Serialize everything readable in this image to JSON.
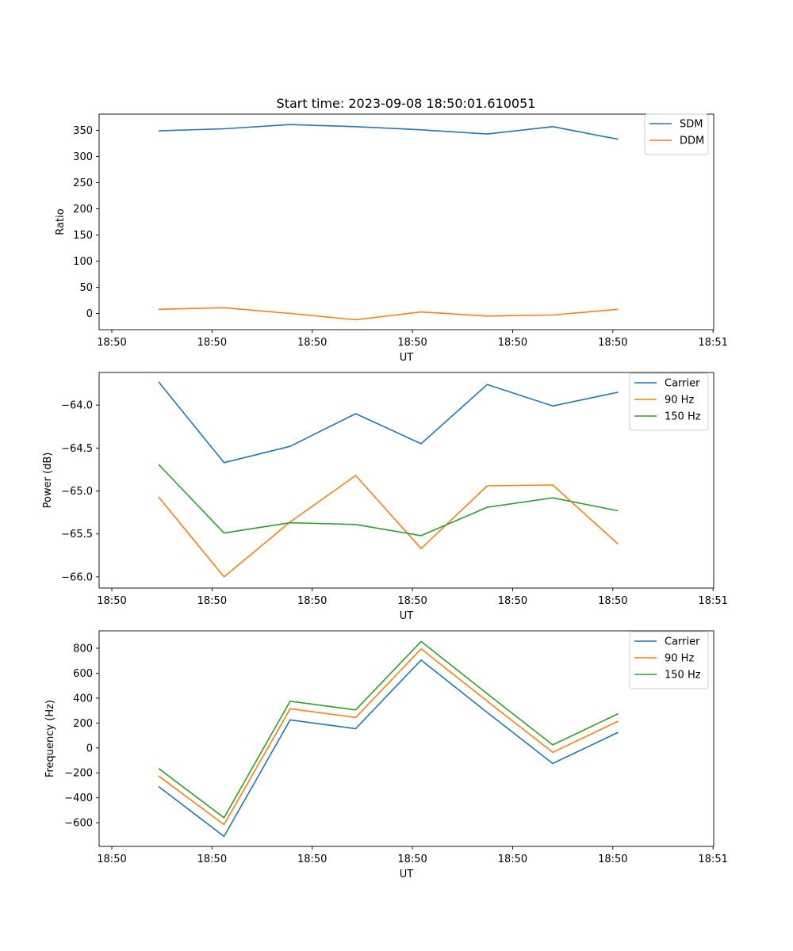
{
  "chart_data": [
    {
      "type": "line",
      "title": "Start time: 2023-09-08 18:50:01.610051",
      "xlabel": "UT",
      "ylabel": "Ratio",
      "xlim": [
        -0.19,
        9.01
      ],
      "ylim": [
        -31,
        381
      ],
      "x_ticks": [
        0,
        3,
        6,
        9
      ],
      "x_tick_values": [
        -0.0,
        1.5,
        3.0,
        4.5,
        6.0,
        7.5,
        9.0
      ],
      "x_tick_labels": [
        "18:50",
        "18:50",
        "18:50",
        "18:50",
        "18:50",
        "18:50",
        "18:51"
      ],
      "y_ticks": [
        0,
        50,
        100,
        150,
        200,
        250,
        300,
        350
      ],
      "y_tick_labels": [
        "0",
        "50",
        "100",
        "150",
        "200",
        "250",
        "300",
        "350"
      ],
      "legend_position": "top-right",
      "x": [
        0.7,
        1.68,
        2.67,
        3.65,
        4.63,
        5.62,
        6.6,
        7.58
      ],
      "series": [
        {
          "name": "SDM",
          "color": "#1f77b4",
          "values": [
            349,
            353,
            361,
            357,
            351,
            343,
            357,
            333
          ]
        },
        {
          "name": "DDM",
          "color": "#ff7f0e",
          "values": [
            8,
            11,
            0,
            -12,
            3,
            -5,
            -3,
            8
          ]
        }
      ]
    },
    {
      "type": "line",
      "title": "",
      "xlabel": "UT",
      "ylabel": "Power (dB)",
      "xlim": [
        -0.19,
        9.01
      ],
      "ylim": [
        -66.13,
        -63.62
      ],
      "x_tick_values": [
        -0.0,
        1.5,
        3.0,
        4.5,
        6.0,
        7.5,
        9.0
      ],
      "x_tick_labels": [
        "18:50",
        "18:50",
        "18:50",
        "18:50",
        "18:50",
        "18:50",
        "18:51"
      ],
      "y_ticks": [
        -66.0,
        -65.5,
        -65.0,
        -64.5,
        -64.0
      ],
      "y_tick_labels": [
        "−66.0",
        "−65.5",
        "−65.0",
        "−64.5",
        "−64.0"
      ],
      "legend_position": "top-right",
      "x": [
        0.7,
        1.68,
        2.67,
        3.65,
        4.63,
        5.62,
        6.6,
        7.58
      ],
      "series": [
        {
          "name": "Carrier",
          "color": "#1f77b4",
          "values": [
            -63.73,
            -64.67,
            -64.48,
            -64.1,
            -64.45,
            -63.76,
            -64.01,
            -63.85
          ]
        },
        {
          "name": "90 Hz",
          "color": "#ff7f0e",
          "values": [
            -65.07,
            -66.0,
            -65.36,
            -64.82,
            -65.67,
            -64.94,
            -64.93,
            -65.62
          ]
        },
        {
          "name": "150 Hz",
          "color": "#2ca02c",
          "values": [
            -64.69,
            -65.49,
            -65.37,
            -65.39,
            -65.52,
            -65.19,
            -65.08,
            -65.23
          ]
        }
      ]
    },
    {
      "type": "line",
      "title": "",
      "xlabel": "UT",
      "ylabel": "Frequency (Hz)",
      "xlim": [
        -0.19,
        9.01
      ],
      "ylim": [
        -790,
        940
      ],
      "x_tick_values": [
        -0.0,
        1.5,
        3.0,
        4.5,
        6.0,
        7.5,
        9.0
      ],
      "x_tick_labels": [
        "18:50",
        "18:50",
        "18:50",
        "18:50",
        "18:50",
        "18:50",
        "18:51"
      ],
      "y_ticks": [
        -600,
        -400,
        -200,
        0,
        200,
        400,
        600,
        800
      ],
      "y_tick_labels": [
        "−600",
        "−400",
        "−200",
        "0",
        "200",
        "400",
        "600",
        "800"
      ],
      "legend_position": "top-right",
      "x": [
        0.7,
        1.68,
        2.67,
        3.65,
        4.63,
        5.62,
        6.6,
        7.58
      ],
      "series": [
        {
          "name": "Carrier",
          "color": "#1f77b4",
          "values": [
            -310,
            -710,
            225,
            155,
            705,
            285,
            -125,
            125
          ]
        },
        {
          "name": "90 Hz",
          "color": "#ff7f0e",
          "values": [
            -225,
            -615,
            315,
            245,
            795,
            375,
            -35,
            215
          ]
        },
        {
          "name": "150 Hz",
          "color": "#2ca02c",
          "values": [
            -165,
            -560,
            375,
            305,
            855,
            435,
            25,
            275
          ]
        }
      ]
    }
  ]
}
